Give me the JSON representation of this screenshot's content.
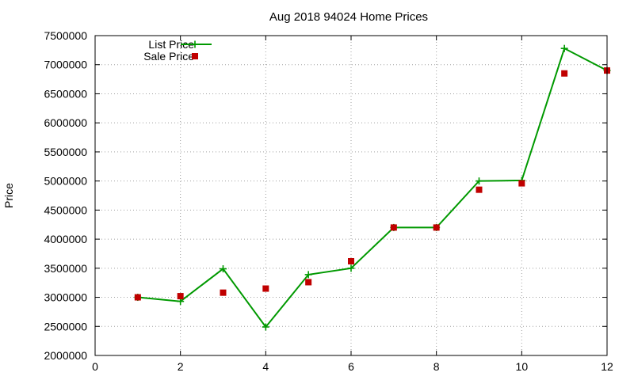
{
  "chart_data": {
    "type": "line",
    "title": "Aug 2018 94024 Home Prices",
    "xlabel": "",
    "ylabel": "Price",
    "xlim": [
      0,
      12
    ],
    "ylim": [
      2000000,
      7500000
    ],
    "xticks": [
      "0",
      "2",
      "4",
      "6",
      "8",
      "10",
      "12"
    ],
    "yticks": [
      "2000000",
      "2500000",
      "3000000",
      "3500000",
      "4000000",
      "4500000",
      "5000000",
      "5500000",
      "6000000",
      "6500000",
      "7000000",
      "7500000"
    ],
    "grid": true,
    "legend_position": "top-left",
    "series": [
      {
        "name": "List Price",
        "style": "linespoints",
        "marker": "plus",
        "color": "#009900",
        "x": [
          1,
          2,
          3,
          4,
          5,
          6,
          7,
          8,
          9,
          10,
          11,
          12
        ],
        "values": [
          3000000,
          2930000,
          3490000,
          2490000,
          3390000,
          3500000,
          4200000,
          4200000,
          5000000,
          5010000,
          7280000,
          6900000
        ]
      },
      {
        "name": "Sale Price",
        "style": "points",
        "marker": "square",
        "color": "#c00000",
        "x": [
          1,
          2,
          3,
          4,
          5,
          6,
          7,
          8,
          9,
          10,
          11,
          12
        ],
        "values": [
          3000000,
          3020000,
          3080000,
          3150000,
          3260000,
          3620000,
          4200000,
          4200000,
          4850000,
          4960000,
          6850000,
          6900000
        ]
      }
    ]
  }
}
